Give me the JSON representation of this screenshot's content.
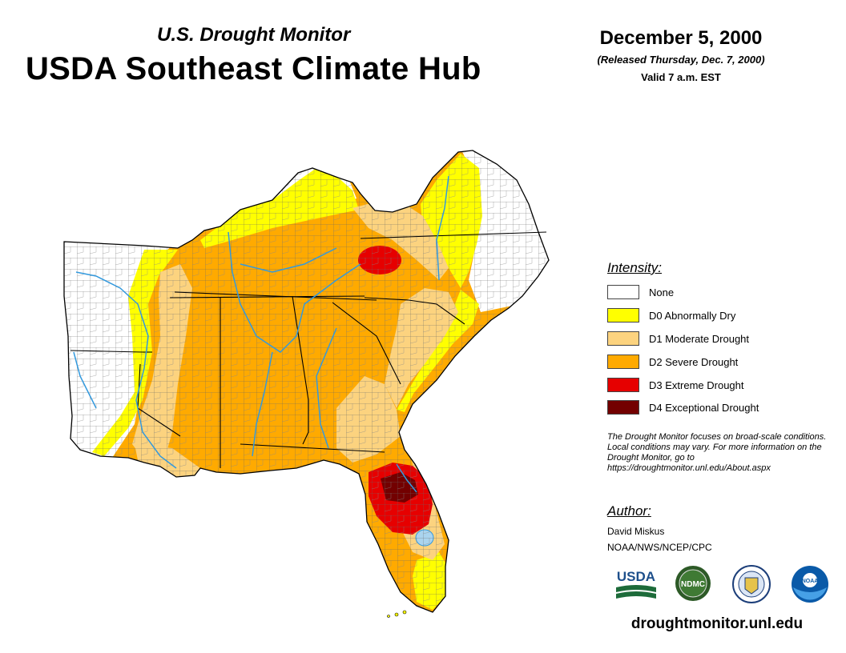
{
  "header": {
    "subtitle": "U.S. Drought Monitor",
    "title": "USDA Southeast Climate Hub",
    "date": "December 5, 2000",
    "released": "(Released Thursday, Dec. 7, 2000)",
    "valid": "Valid 7 a.m. EST"
  },
  "legend": {
    "title": "Intensity:",
    "items": [
      {
        "label": "None",
        "color": "#ffffff"
      },
      {
        "label": "D0 Abnormally Dry",
        "color": "#ffff00"
      },
      {
        "label": "D1 Moderate Drought",
        "color": "#fcd37f"
      },
      {
        "label": "D2 Severe Drought",
        "color": "#ffaa00"
      },
      {
        "label": "D3 Extreme Drought",
        "color": "#e60000"
      },
      {
        "label": "D4 Exceptional Drought",
        "color": "#730000"
      }
    ]
  },
  "note": "The Drought Monitor focuses on broad-scale conditions. Local conditions may vary. For more information on the Drought Monitor, go to https://droughtmonitor.unl.edu/About.aspx",
  "author": {
    "title": "Author:",
    "name": "David Miskus",
    "org": "NOAA/NWS/NCEP/CPC"
  },
  "logos": {
    "usda": "USDA",
    "ndmc": "NDMC",
    "noaa": "NOAA"
  },
  "footer_url": "droughtmonitor.unl.edu",
  "colors": {
    "river": "#3399dd",
    "boundary": "#000000",
    "county_lines": "#555555"
  },
  "map_regions": [
    {
      "category": "None",
      "area": "Arkansas, western Louisiana, NE Kentucky/Virginia, eastern North Carolina"
    },
    {
      "category": "D0 Abnormally Dry",
      "area": "eastern Arkansas, Kentucky, Virginia, western North Carolina, coastal Carolinas, southern Florida"
    },
    {
      "category": "D1 Moderate Drought",
      "area": "Mississippi Delta, eastern Georgia, South Carolina, Louisiana coast, central Florida"
    },
    {
      "category": "D2 Severe Drought",
      "area": "Tennessee, Mississippi, Alabama, Georgia, western North Carolina, Florida panhandle"
    },
    {
      "category": "D3 Extreme Drought",
      "area": "NE Tennessee/SW Virginia, central Florida"
    },
    {
      "category": "D4 Exceptional Drought",
      "area": "north-central Florida"
    }
  ]
}
